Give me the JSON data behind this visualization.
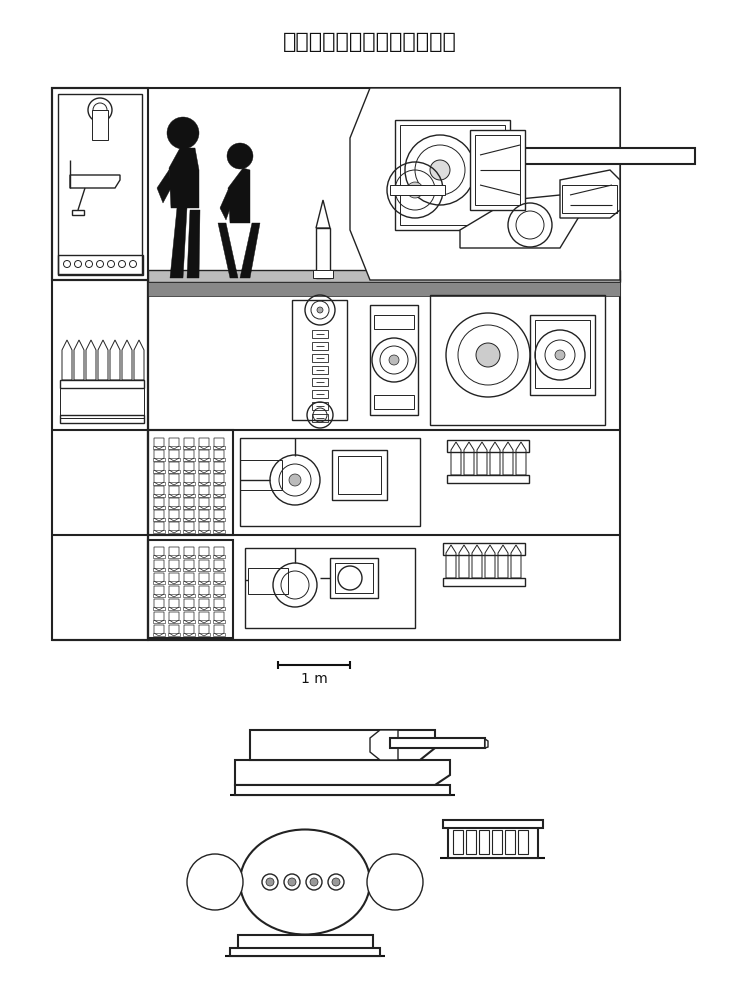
{
  "title": "江南制造四联十二生高平快炮",
  "title_fontsize": 15,
  "bg_color": "#ffffff",
  "line_color": "#222222",
  "dark_color": "#111111",
  "scale_bar_label": "1 m",
  "figsize": [
    7.39,
    10.0
  ],
  "dpi": 100
}
